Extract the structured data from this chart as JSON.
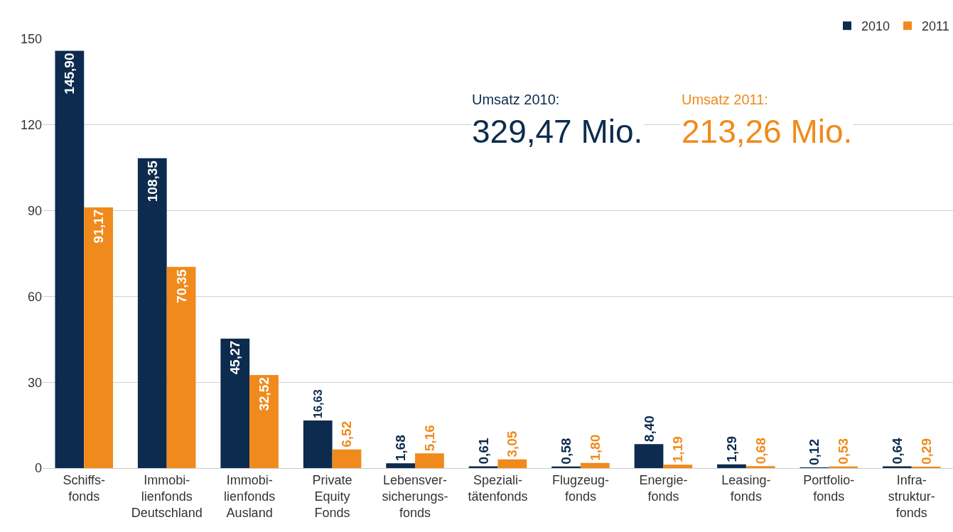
{
  "chart_data": {
    "type": "bar",
    "categories": [
      "Schiffs-\nfonds",
      "Immobi-\nlienfonds\nDeutschland",
      "Immobi-\nlienfonds\nAusland",
      "Private\nEquity\nFonds",
      "Lebensver-\nsicherungs-\nfonds",
      "Speziali-\ntätenfonds",
      "Flugzeug-\nfonds",
      "Energie-\nfonds",
      "Leasing-\nfonds",
      "Portfolio-\nfonds",
      "Infra-\nstruktur-\nfonds"
    ],
    "series": [
      {
        "name": "2010",
        "color": "#0d2b4e",
        "values": [
          145.9,
          108.35,
          45.27,
          16.63,
          1.68,
          0.61,
          0.58,
          8.4,
          1.29,
          0.12,
          0.64
        ],
        "value_labels": [
          "145,90",
          "108,35",
          "45,27",
          "16,63",
          "1,68",
          "0,61",
          "0,58",
          "8,40",
          "1,29",
          "0,12",
          "0,64"
        ]
      },
      {
        "name": "2011",
        "color": "#f08a1c",
        "values": [
          91.17,
          70.35,
          32.52,
          6.52,
          5.16,
          3.05,
          1.8,
          1.19,
          0.68,
          0.53,
          0.29
        ],
        "value_labels": [
          "91,17",
          "70,35",
          "32,52",
          "6,52",
          "5,16",
          "3,05",
          "1,80",
          "1,19",
          "0,68",
          "0,53",
          "0,29"
        ]
      }
    ],
    "annotations": [
      "Umsatz 2010:",
      "329,47 Mio.",
      "Umsatz 2011:",
      "213,26 Mio."
    ],
    "ylim": [
      0,
      150
    ],
    "yticks": [
      0,
      30,
      60,
      90,
      120,
      150
    ],
    "grid": "y",
    "legend": "top right"
  }
}
